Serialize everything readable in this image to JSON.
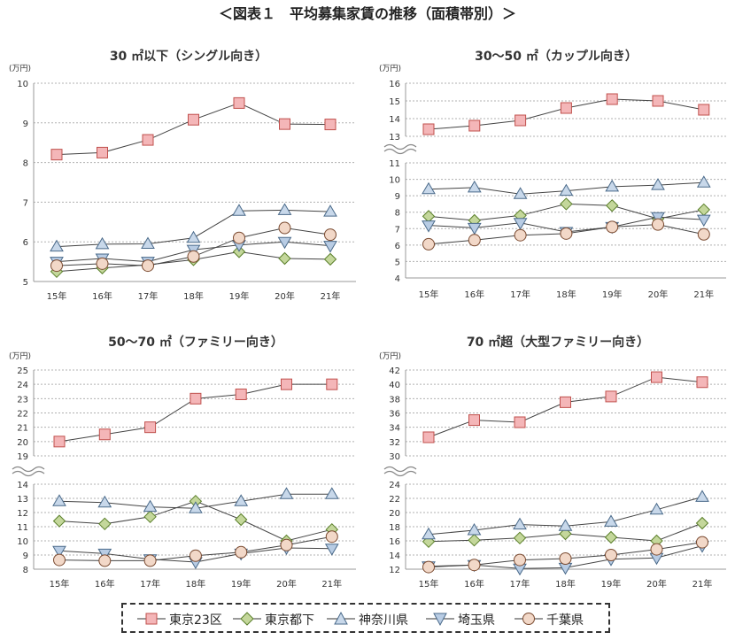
{
  "main_title": "＜図表１　平均募集家賃の推移（面積帯別）＞",
  "legend": [
    {
      "name": "東京23区",
      "color": "#c0504d",
      "fill": "#f4b6b8",
      "marker": "square"
    },
    {
      "name": "東京都下",
      "color": "#5a7f2a",
      "fill": "#c4d79b",
      "marker": "diamond"
    },
    {
      "name": "神奈川県",
      "color": "#4a6a8a",
      "fill": "#c8d8ea",
      "marker": "triangle-up"
    },
    {
      "name": "埼玉県",
      "color": "#4a6a8a",
      "fill": "#b8cce4",
      "marker": "triangle-down"
    },
    {
      "name": "千葉県",
      "color": "#7a4a30",
      "fill": "#f2d8c8",
      "marker": "circle"
    }
  ],
  "chart_data": [
    {
      "type": "line",
      "title": "30 ㎡以下（シングル向き）",
      "unit_label": "(万円)",
      "categories": [
        "15年",
        "16年",
        "17年",
        "18年",
        "19年",
        "20年",
        "21年"
      ],
      "axis_break": false,
      "ylim": [
        5,
        10
      ],
      "yticks": [
        5,
        6,
        7,
        8,
        9,
        10
      ],
      "series": [
        {
          "name": "東京23区",
          "values": [
            8.2,
            8.25,
            8.57,
            9.08,
            9.5,
            8.97,
            8.96
          ]
        },
        {
          "name": "東京都下",
          "values": [
            5.25,
            5.34,
            5.42,
            5.55,
            5.75,
            5.58,
            5.56
          ]
        },
        {
          "name": "神奈川県",
          "values": [
            5.88,
            5.94,
            5.95,
            6.1,
            6.78,
            6.8,
            6.76
          ]
        },
        {
          "name": "埼玉県",
          "values": [
            5.5,
            5.58,
            5.5,
            5.8,
            5.92,
            6.0,
            5.9
          ]
        },
        {
          "name": "千葉県",
          "values": [
            5.4,
            5.45,
            5.4,
            5.63,
            6.1,
            6.35,
            6.18
          ]
        }
      ]
    },
    {
      "type": "line",
      "title": "30～50 ㎡（カップル向き）",
      "unit_label": "(万円)",
      "categories": [
        "15年",
        "16年",
        "17年",
        "18年",
        "19年",
        "20年",
        "21年"
      ],
      "axis_break": true,
      "upper_ylim": [
        13,
        16
      ],
      "upper_yticks": [
        13,
        14,
        15,
        16
      ],
      "lower_ylim": [
        4,
        11
      ],
      "lower_yticks": [
        4,
        5,
        6,
        7,
        8,
        9,
        10,
        11
      ],
      "series": [
        {
          "name": "東京23区",
          "values": [
            13.4,
            13.6,
            13.9,
            14.6,
            15.1,
            15.0,
            14.5
          ]
        },
        {
          "name": "東京都下",
          "values": [
            7.75,
            7.5,
            7.8,
            8.5,
            8.4,
            7.6,
            8.15
          ]
        },
        {
          "name": "神奈川県",
          "values": [
            9.4,
            9.5,
            9.1,
            9.3,
            9.55,
            9.65,
            9.8
          ]
        },
        {
          "name": "埼玉県",
          "values": [
            7.2,
            7.05,
            7.35,
            6.8,
            7.1,
            7.7,
            7.55
          ]
        },
        {
          "name": "千葉県",
          "values": [
            6.05,
            6.3,
            6.6,
            6.7,
            7.1,
            7.25,
            6.65
          ]
        }
      ]
    },
    {
      "type": "line",
      "title": "50～70 ㎡（ファミリー向き）",
      "unit_label": "(万円)",
      "categories": [
        "15年",
        "16年",
        "17年",
        "18年",
        "19年",
        "20年",
        "21年"
      ],
      "axis_break": true,
      "upper_ylim": [
        19,
        25
      ],
      "upper_yticks": [
        19,
        20,
        21,
        22,
        23,
        24,
        25
      ],
      "lower_ylim": [
        8,
        14
      ],
      "lower_yticks": [
        8,
        9,
        10,
        11,
        12,
        13,
        14
      ],
      "series": [
        {
          "name": "東京23区",
          "values": [
            20.0,
            20.5,
            21.0,
            23.0,
            23.3,
            24.0,
            24.0
          ]
        },
        {
          "name": "東京都下",
          "values": [
            11.4,
            11.2,
            11.7,
            12.8,
            11.5,
            10.0,
            10.8
          ]
        },
        {
          "name": "神奈川県",
          "values": [
            12.8,
            12.7,
            12.4,
            12.3,
            12.8,
            13.3,
            13.3
          ]
        },
        {
          "name": "埼玉県",
          "values": [
            9.3,
            9.1,
            8.7,
            8.5,
            9.1,
            9.5,
            9.45
          ]
        },
        {
          "name": "千葉県",
          "values": [
            8.65,
            8.6,
            8.6,
            8.95,
            9.2,
            9.7,
            10.3
          ]
        }
      ]
    },
    {
      "type": "line",
      "title": "70 ㎡超（大型ファミリー向き）",
      "unit_label": "(万円)",
      "categories": [
        "15年",
        "16年",
        "17年",
        "18年",
        "19年",
        "20年",
        "21年"
      ],
      "axis_break": true,
      "upper_ylim": [
        30,
        42
      ],
      "upper_yticks": [
        30,
        32,
        34,
        36,
        38,
        40,
        42
      ],
      "lower_ylim": [
        12,
        24
      ],
      "lower_yticks": [
        12,
        14,
        16,
        18,
        20,
        22,
        24
      ],
      "series": [
        {
          "name": "東京23区",
          "values": [
            32.6,
            35.0,
            34.7,
            37.5,
            38.3,
            41.0,
            40.3
          ]
        },
        {
          "name": "東京都下",
          "values": [
            15.9,
            16.1,
            16.4,
            17.0,
            16.5,
            16.0,
            18.5
          ]
        },
        {
          "name": "神奈川県",
          "values": [
            16.9,
            17.5,
            18.3,
            18.1,
            18.7,
            20.4,
            22.2
          ]
        },
        {
          "name": "埼玉県",
          "values": [
            12.4,
            12.6,
            12.1,
            12.2,
            13.4,
            13.6,
            15.3
          ]
        },
        {
          "name": "千葉県",
          "values": [
            12.3,
            12.6,
            13.3,
            13.5,
            14.0,
            14.8,
            15.8
          ]
        }
      ]
    }
  ]
}
